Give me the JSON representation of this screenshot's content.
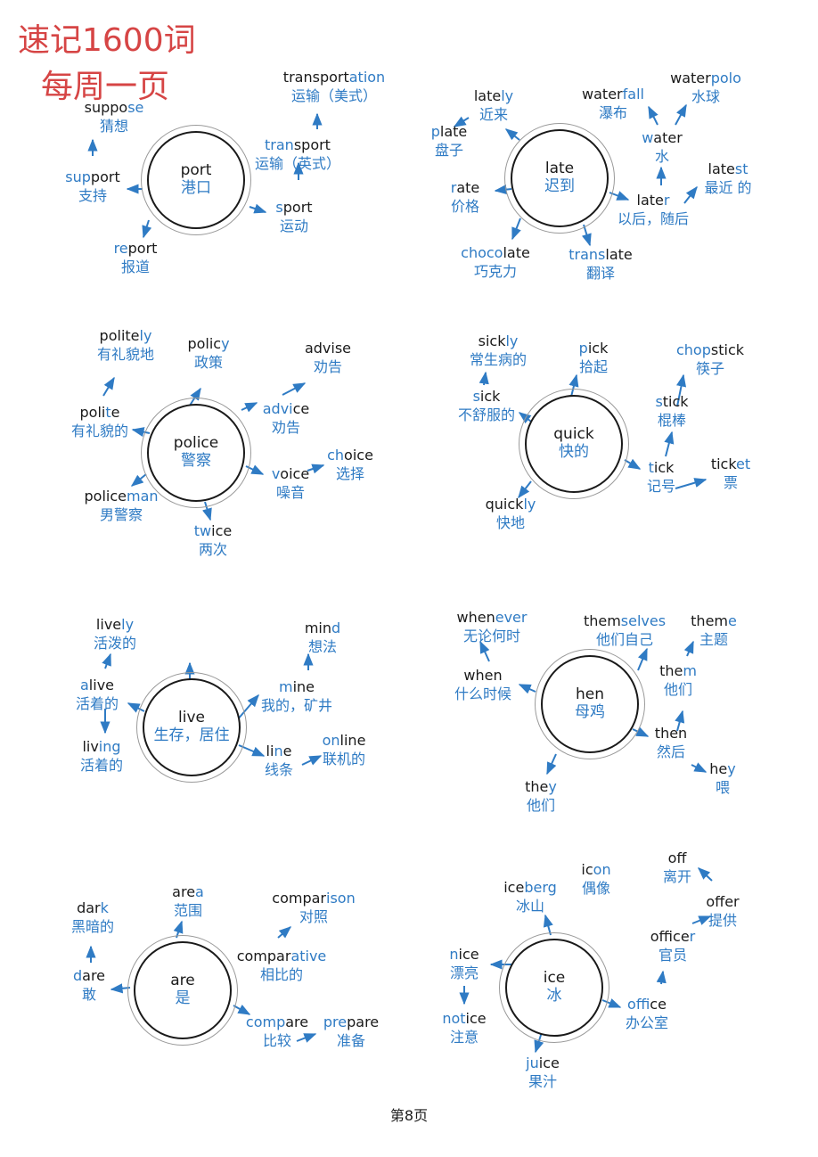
{
  "header": {
    "title_line1": "速记1600词",
    "title_line2": "每周一页"
  },
  "footer": {
    "page_label": "第8页"
  },
  "clusters": [
    {
      "center": {
        "en": "port",
        "zh": "港口"
      },
      "words": [
        {
          "parts": [
            [
              "transport",
              0
            ],
            [
              "ation",
              1
            ]
          ],
          "zh": "运输（美式）"
        },
        {
          "parts": [
            [
              "suppo",
              0
            ],
            [
              "se",
              1
            ]
          ],
          "zh": "猜想"
        },
        {
          "parts": [
            [
              "tran",
              1
            ],
            [
              "sport",
              0
            ]
          ],
          "zh": "运输（英式）"
        },
        {
          "parts": [
            [
              "sup",
              1
            ],
            [
              "port",
              0
            ]
          ],
          "zh": "支持"
        },
        {
          "parts": [
            [
              "s",
              1
            ],
            [
              "port",
              0
            ]
          ],
          "zh": "运动"
        },
        {
          "parts": [
            [
              "re",
              1
            ],
            [
              "port",
              0
            ]
          ],
          "zh": "报道"
        }
      ]
    },
    {
      "center": {
        "en": "late",
        "zh": "迟到"
      },
      "words": [
        {
          "parts": [
            [
              "late",
              0
            ],
            [
              "ly",
              1
            ]
          ],
          "zh": "近来"
        },
        {
          "parts": [
            [
              "water",
              0
            ],
            [
              "fall",
              1
            ]
          ],
          "zh": "瀑布"
        },
        {
          "parts": [
            [
              "water",
              0
            ],
            [
              "polo",
              1
            ]
          ],
          "zh": "水球"
        },
        {
          "parts": [
            [
              "p",
              1
            ],
            [
              "late",
              0
            ]
          ],
          "zh": "盘子"
        },
        {
          "parts": [
            [
              "w",
              1
            ],
            [
              "ater",
              0
            ]
          ],
          "zh": "水"
        },
        {
          "parts": [
            [
              "late",
              0
            ],
            [
              "st",
              1
            ]
          ],
          "zh": "最近 的"
        },
        {
          "parts": [
            [
              "r",
              1
            ],
            [
              "ate",
              0
            ]
          ],
          "zh": "价格"
        },
        {
          "parts": [
            [
              "late",
              0
            ],
            [
              "r",
              1
            ]
          ],
          "zh": "以后，随后"
        },
        {
          "parts": [
            [
              "choco",
              1
            ],
            [
              "late",
              0
            ]
          ],
          "zh": "巧克力"
        },
        {
          "parts": [
            [
              "trans",
              1
            ],
            [
              "late",
              0
            ]
          ],
          "zh": "翻译"
        }
      ]
    },
    {
      "center": {
        "en": "police",
        "zh": "警察"
      },
      "words": [
        {
          "parts": [
            [
              "polite",
              0
            ],
            [
              "ly",
              1
            ]
          ],
          "zh": "有礼貌地"
        },
        {
          "parts": [
            [
              "polic",
              0
            ],
            [
              "y",
              1
            ]
          ],
          "zh": "政策"
        },
        {
          "parts": [
            [
              "advise",
              0
            ]
          ],
          "zh": "劝告"
        },
        {
          "parts": [
            [
              "poli",
              0
            ],
            [
              "t",
              1
            ],
            [
              "e",
              0
            ]
          ],
          "zh": "有礼貌的"
        },
        {
          "parts": [
            [
              "advi",
              1
            ],
            [
              "ce",
              0
            ]
          ],
          "zh": "劝告"
        },
        {
          "parts": [
            [
              "ch",
              1
            ],
            [
              "oice",
              0
            ]
          ],
          "zh": "选择"
        },
        {
          "parts": [
            [
              "v",
              1
            ],
            [
              "oice",
              0
            ]
          ],
          "zh": "噪音"
        },
        {
          "parts": [
            [
              "police",
              0
            ],
            [
              "man",
              1
            ]
          ],
          "zh": "男警察"
        },
        {
          "parts": [
            [
              "tw",
              1
            ],
            [
              "ice",
              0
            ]
          ],
          "zh": "两次"
        }
      ]
    },
    {
      "center": {
        "en": "quick",
        "zh": "快的"
      },
      "words": [
        {
          "parts": [
            [
              "sick",
              0
            ],
            [
              "ly",
              1
            ]
          ],
          "zh": "常生病的"
        },
        {
          "parts": [
            [
              "p",
              1
            ],
            [
              "ick",
              0
            ]
          ],
          "zh": "拾起"
        },
        {
          "parts": [
            [
              "chop",
              1
            ],
            [
              "stick",
              0
            ]
          ],
          "zh": "筷子"
        },
        {
          "parts": [
            [
              "s",
              1
            ],
            [
              "ick",
              0
            ]
          ],
          "zh": "不舒服的"
        },
        {
          "parts": [
            [
              "s",
              1
            ],
            [
              "tick",
              0
            ]
          ],
          "zh": "棍棒"
        },
        {
          "parts": [
            [
              "t",
              1
            ],
            [
              "ick",
              0
            ]
          ],
          "zh": "记号"
        },
        {
          "parts": [
            [
              "tick",
              0
            ],
            [
              "et",
              1
            ]
          ],
          "zh": "票"
        },
        {
          "parts": [
            [
              "quick",
              0
            ],
            [
              "ly",
              1
            ]
          ],
          "zh": "快地"
        }
      ]
    },
    {
      "center": {
        "en": "live",
        "zh": "生存，居住"
      },
      "words": [
        {
          "parts": [
            [
              "live",
              0
            ],
            [
              "ly",
              1
            ]
          ],
          "zh": "活泼的"
        },
        {
          "parts": [
            [
              "min",
              0
            ],
            [
              "d",
              1
            ]
          ],
          "zh": "想法"
        },
        {
          "parts": [
            [
              "a",
              1
            ],
            [
              "live",
              0
            ]
          ],
          "zh": "活着的"
        },
        {
          "parts": [
            [
              "m",
              1
            ],
            [
              "ine",
              0
            ]
          ],
          "zh": "我的，矿井"
        },
        {
          "parts": [
            [
              "liv",
              0
            ],
            [
              "ing",
              1
            ]
          ],
          "zh": "活着的"
        },
        {
          "parts": [
            [
              "li",
              0
            ],
            [
              "n",
              1
            ],
            [
              "e",
              0
            ]
          ],
          "zh": "线条"
        },
        {
          "parts": [
            [
              "on",
              1
            ],
            [
              "line",
              0
            ]
          ],
          "zh": "联机的"
        }
      ]
    },
    {
      "center": {
        "en": "hen",
        "zh": "母鸡"
      },
      "words": [
        {
          "parts": [
            [
              "when",
              0
            ],
            [
              "ever",
              1
            ]
          ],
          "zh": "无论何时"
        },
        {
          "parts": [
            [
              "them",
              0
            ],
            [
              "selves",
              1
            ]
          ],
          "zh": "他们自己"
        },
        {
          "parts": [
            [
              "them",
              0
            ],
            [
              "e",
              1
            ]
          ],
          "zh": "主题"
        },
        {
          "parts": [
            [
              "when",
              0
            ]
          ],
          "zh": "什么时候"
        },
        {
          "parts": [
            [
              "the",
              0
            ],
            [
              "m",
              1
            ]
          ],
          "zh": "他们"
        },
        {
          "parts": [
            [
              "then",
              0
            ]
          ],
          "zh": "然后"
        },
        {
          "parts": [
            [
              "he",
              0
            ],
            [
              "y",
              1
            ]
          ],
          "zh": "喂"
        },
        {
          "parts": [
            [
              "the",
              0
            ],
            [
              "y",
              1
            ]
          ],
          "zh": "他们"
        }
      ]
    },
    {
      "center": {
        "en": "are",
        "zh": "是"
      },
      "words": [
        {
          "parts": [
            [
              "dar",
              0
            ],
            [
              "k",
              1
            ]
          ],
          "zh": "黑暗的"
        },
        {
          "parts": [
            [
              "are",
              0
            ],
            [
              "a",
              1
            ]
          ],
          "zh": "范围"
        },
        {
          "parts": [
            [
              "compar",
              0
            ],
            [
              "ison",
              1
            ]
          ],
          "zh": "对照"
        },
        {
          "parts": [
            [
              "d",
              1
            ],
            [
              "are",
              0
            ]
          ],
          "zh": "敢"
        },
        {
          "parts": [
            [
              "compar",
              0
            ],
            [
              "ative",
              1
            ]
          ],
          "zh": "相比的"
        },
        {
          "parts": [
            [
              "comp",
              1
            ],
            [
              "are",
              0
            ]
          ],
          "zh": "比较"
        },
        {
          "parts": [
            [
              "pre",
              1
            ],
            [
              "pare",
              0
            ]
          ],
          "zh": "准备"
        }
      ]
    },
    {
      "center": {
        "en": "ice",
        "zh": "冰"
      },
      "words": [
        {
          "parts": [
            [
              "off",
              0
            ]
          ],
          "zh": "离开"
        },
        {
          "parts": [
            [
              "ic",
              0
            ],
            [
              "on",
              1
            ]
          ],
          "zh": "偶像"
        },
        {
          "parts": [
            [
              "ice",
              0
            ],
            [
              "berg",
              1
            ]
          ],
          "zh": "冰山"
        },
        {
          "parts": [
            [
              "offer",
              0
            ]
          ],
          "zh": "提供"
        },
        {
          "parts": [
            [
              "office",
              0
            ],
            [
              "r",
              1
            ]
          ],
          "zh": "官员"
        },
        {
          "parts": [
            [
              "n",
              1
            ],
            [
              "ice",
              0
            ]
          ],
          "zh": "漂亮"
        },
        {
          "parts": [
            [
              "off",
              1
            ],
            [
              "ice",
              0
            ]
          ],
          "zh": "办公室"
        },
        {
          "parts": [
            [
              "not",
              1
            ],
            [
              "ice",
              0
            ]
          ],
          "zh": "注意"
        },
        {
          "parts": [
            [
              "ju",
              1
            ],
            [
              "ice",
              0
            ]
          ],
          "zh": "果汁"
        }
      ]
    }
  ],
  "colors": {
    "accent": "#2f7bc4",
    "title": "#d64545",
    "text": "#1a1a1a"
  }
}
